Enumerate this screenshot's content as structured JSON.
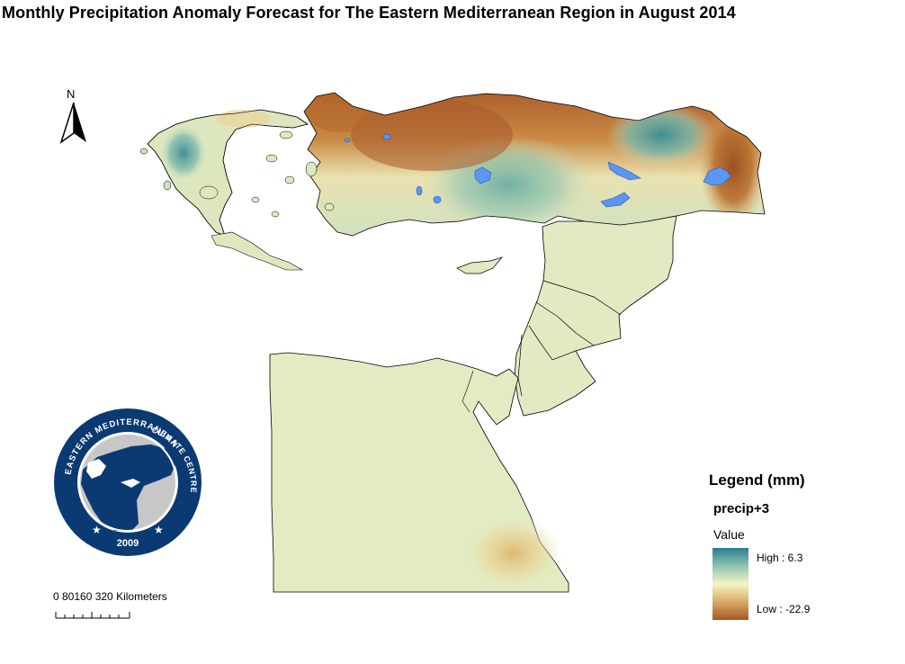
{
  "title": "Monthly Precipitation Anomaly Forecast for The Eastern Mediterranean Region in August 2014",
  "north_arrow": {
    "label": "N",
    "icon": "north-arrow-icon"
  },
  "scale_bar": {
    "label": "0  80160     320 Kilometers"
  },
  "logo": {
    "text_top": "EASTERN MEDITERRANEAN",
    "text_right": "CLIMATE CENTRE",
    "year": "2009",
    "colors": {
      "ring": "#0b3a73",
      "map": "#0b3a73",
      "land": "#c7c7c7"
    }
  },
  "legend": {
    "title": "Legend (mm)",
    "layer": "precip+3",
    "value_label": "Value",
    "high_label": "High : 6.3",
    "low_label": "Low : -22.9",
    "high_value": 6.3,
    "low_value": -22.9,
    "colors": {
      "high": "#2a7e8c",
      "mid": "#f6f4c4",
      "low": "#a6581f"
    }
  },
  "map_colors": {
    "neutral": "#e3ebc3",
    "wet": "#4e9e9a",
    "wet_light": "#a6cfb4",
    "dry": "#a9592a",
    "dry_light": "#d9a75a",
    "lake": "#5b97f0",
    "border": "#000000"
  }
}
